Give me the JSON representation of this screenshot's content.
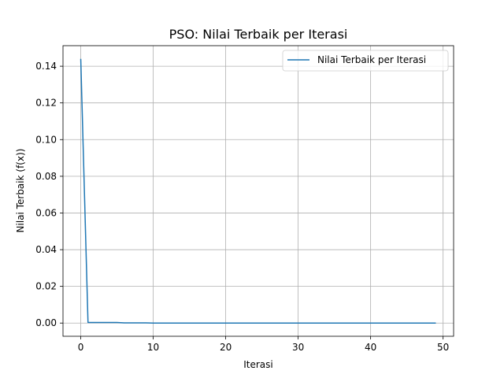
{
  "chart_data": {
    "type": "line",
    "title": "PSO: Nilai Terbaik per Iterasi",
    "xlabel": "Iterasi",
    "ylabel": "Nilai Terbaik (f(x))",
    "xlim": [
      -2.45,
      51.45
    ],
    "ylim": [
      -0.0072,
      0.1512
    ],
    "xticks": [
      0,
      10,
      20,
      30,
      40,
      50
    ],
    "xtick_labels": [
      "0",
      "10",
      "20",
      "30",
      "40",
      "50"
    ],
    "yticks": [
      0.0,
      0.02,
      0.04,
      0.06,
      0.08,
      0.1,
      0.12,
      0.14
    ],
    "ytick_labels": [
      "0.00",
      "0.02",
      "0.04",
      "0.06",
      "0.08",
      "0.10",
      "0.12",
      "0.14"
    ],
    "grid": true,
    "legend_position": "top-right",
    "series": [
      {
        "name": "Nilai Terbaik per Iterasi",
        "color": "#1f77b4",
        "x": [
          0,
          1,
          2,
          3,
          4,
          5,
          6,
          7,
          8,
          9,
          10,
          11,
          12,
          13,
          14,
          15,
          16,
          17,
          18,
          19,
          20,
          21,
          22,
          23,
          24,
          25,
          26,
          27,
          28,
          29,
          30,
          31,
          32,
          33,
          34,
          35,
          36,
          37,
          38,
          39,
          40,
          41,
          42,
          43,
          44,
          45,
          46,
          47,
          48,
          49
        ],
        "y": [
          0.144,
          0.0003,
          0.0003,
          0.0003,
          0.0003,
          0.0003,
          0.0001,
          0.0001,
          0.0001,
          0.0001,
          0.0,
          0.0,
          0.0,
          0.0,
          0.0,
          0.0,
          0.0,
          0.0,
          0.0,
          0.0,
          0.0,
          0.0,
          0.0,
          0.0,
          0.0,
          0.0,
          0.0,
          0.0,
          0.0,
          0.0,
          0.0,
          0.0,
          0.0,
          0.0,
          0.0,
          0.0,
          0.0,
          0.0,
          0.0,
          0.0,
          0.0,
          0.0,
          0.0,
          0.0,
          0.0,
          0.0,
          0.0,
          0.0,
          0.0,
          0.0
        ]
      }
    ]
  }
}
